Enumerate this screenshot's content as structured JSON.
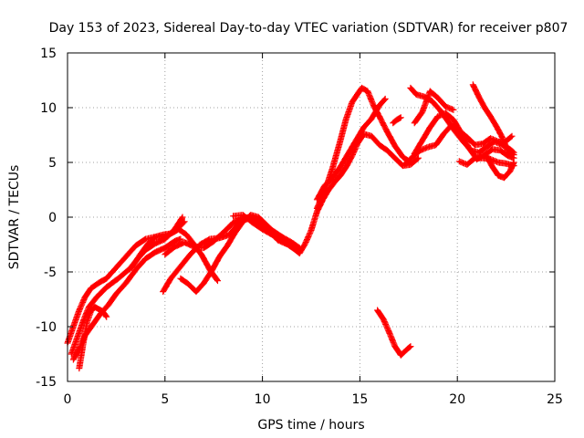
{
  "chart_data": {
    "type": "scatter",
    "title": "Day 153 of 2023, Sidereal Day-to-day VTEC variation (SDTVAR) for receiver p807",
    "xlabel": "GPS time / hours",
    "ylabel": "SDTVAR / TECUs",
    "xlim": [
      0,
      25
    ],
    "ylim": [
      -15,
      15
    ],
    "xticks": [
      0,
      5,
      10,
      15,
      20,
      25
    ],
    "yticks": [
      -15,
      -10,
      -5,
      0,
      5,
      10,
      15
    ],
    "xtick_labels": [
      "0",
      "5",
      "10",
      "15",
      "20",
      "25"
    ],
    "ytick_labels": [
      "-15",
      "-10",
      "-5",
      "0",
      "5",
      "10",
      "15"
    ],
    "grid": true,
    "marker": "+",
    "color": "#ff0000",
    "series": [
      {
        "name": "track-1",
        "points": [
          [
            0.0,
            -11.5
          ],
          [
            0.3,
            -10.0
          ],
          [
            0.6,
            -8.5
          ],
          [
            0.9,
            -7.3
          ],
          [
            1.2,
            -6.5
          ],
          [
            1.6,
            -6.0
          ],
          [
            2.0,
            -5.6
          ],
          [
            2.5,
            -4.6
          ],
          [
            3.0,
            -3.6
          ],
          [
            3.5,
            -2.6
          ],
          [
            4.0,
            -2.0
          ],
          [
            4.5,
            -1.8
          ],
          [
            5.0,
            -1.8
          ],
          [
            5.5,
            -1.3
          ],
          [
            6.0,
            -0.4
          ]
        ]
      },
      {
        "name": "track-2",
        "points": [
          [
            0.2,
            -12.5
          ],
          [
            0.5,
            -11.0
          ],
          [
            0.8,
            -9.5
          ],
          [
            1.1,
            -8.2
          ],
          [
            1.5,
            -7.3
          ],
          [
            2.0,
            -6.4
          ],
          [
            2.6,
            -5.6
          ],
          [
            3.2,
            -4.7
          ],
          [
            3.6,
            -3.8
          ],
          [
            4.0,
            -3.0
          ],
          [
            4.5,
            -2.4
          ],
          [
            5.0,
            -2.0
          ],
          [
            5.5,
            -1.1
          ],
          [
            5.9,
            0.0
          ]
        ]
      },
      {
        "name": "track-3",
        "points": [
          [
            0.6,
            -13.8
          ],
          [
            0.8,
            -11.6
          ],
          [
            1.0,
            -9.6
          ],
          [
            1.2,
            -8.6
          ],
          [
            1.4,
            -8.2
          ],
          [
            1.8,
            -8.6
          ],
          [
            2.0,
            -9.1
          ]
        ]
      },
      {
        "name": "track-4",
        "points": [
          [
            0.3,
            -13.0
          ],
          [
            0.6,
            -12.0
          ],
          [
            0.9,
            -10.8
          ],
          [
            1.3,
            -9.8
          ],
          [
            1.7,
            -8.8
          ],
          [
            2.1,
            -8.0
          ],
          [
            2.5,
            -7.0
          ],
          [
            3.0,
            -6.0
          ],
          [
            3.5,
            -4.8
          ],
          [
            4.0,
            -3.8
          ],
          [
            4.5,
            -3.2
          ],
          [
            5.0,
            -2.8
          ],
          [
            5.5,
            -2.2
          ],
          [
            5.8,
            -2.0
          ]
        ]
      },
      {
        "name": "track-5",
        "points": [
          [
            3.3,
            -4.6
          ],
          [
            3.7,
            -3.5
          ],
          [
            4.1,
            -2.5
          ],
          [
            4.5,
            -1.8
          ],
          [
            4.9,
            -1.6
          ],
          [
            5.3,
            -1.5
          ],
          [
            5.7,
            -1.1
          ],
          [
            6.1,
            -1.6
          ],
          [
            6.5,
            -2.5
          ],
          [
            6.9,
            -3.5
          ],
          [
            7.3,
            -4.8
          ],
          [
            7.7,
            -5.8
          ]
        ]
      },
      {
        "name": "track-6",
        "points": [
          [
            4.9,
            -6.8
          ],
          [
            5.3,
            -5.6
          ],
          [
            5.8,
            -4.5
          ],
          [
            6.3,
            -3.4
          ],
          [
            6.8,
            -2.5
          ],
          [
            7.3,
            -2.0
          ],
          [
            7.8,
            -1.9
          ],
          [
            8.3,
            -1.6
          ],
          [
            8.8,
            -0.5
          ],
          [
            9.3,
            -0.1
          ],
          [
            9.8,
            -0.4
          ],
          [
            10.3,
            -1.2
          ],
          [
            10.8,
            -2.1
          ],
          [
            11.3,
            -2.5
          ],
          [
            11.8,
            -3.1
          ]
        ]
      },
      {
        "name": "track-7",
        "points": [
          [
            5.0,
            -3.4
          ],
          [
            5.5,
            -2.7
          ],
          [
            6.0,
            -2.3
          ],
          [
            6.5,
            -2.7
          ],
          [
            7.0,
            -2.8
          ],
          [
            7.5,
            -2.2
          ],
          [
            8.0,
            -1.4
          ],
          [
            8.5,
            -0.5
          ],
          [
            9.0,
            -0.1
          ],
          [
            9.5,
            0.0
          ],
          [
            10.0,
            -0.4
          ],
          [
            10.5,
            -1.2
          ],
          [
            11.0,
            -1.8
          ],
          [
            11.5,
            -2.3
          ],
          [
            11.9,
            -2.8
          ]
        ]
      },
      {
        "name": "track-8",
        "points": [
          [
            5.8,
            -5.6
          ],
          [
            6.2,
            -6.1
          ],
          [
            6.6,
            -6.8
          ],
          [
            7.0,
            -6.0
          ],
          [
            7.4,
            -4.9
          ],
          [
            7.8,
            -3.6
          ],
          [
            8.2,
            -2.6
          ],
          [
            8.6,
            -1.4
          ],
          [
            9.0,
            -0.4
          ],
          [
            9.4,
            0.2
          ],
          [
            9.8,
            0.0
          ],
          [
            10.2,
            -0.7
          ],
          [
            10.6,
            -1.5
          ],
          [
            11.0,
            -1.8
          ],
          [
            11.4,
            -2.5
          ],
          [
            11.8,
            -2.8
          ]
        ]
      },
      {
        "name": "track-9",
        "points": [
          [
            8.5,
            0.1
          ],
          [
            9.0,
            0.2
          ],
          [
            9.5,
            -0.5
          ],
          [
            10.0,
            -1.1
          ],
          [
            10.5,
            -1.6
          ],
          [
            11.0,
            -2.1
          ],
          [
            11.5,
            -2.7
          ],
          [
            11.9,
            -3.3
          ],
          [
            12.2,
            -2.4
          ],
          [
            12.5,
            -1.2
          ],
          [
            12.8,
            0.5
          ],
          [
            13.1,
            1.6
          ],
          [
            13.4,
            2.5
          ],
          [
            13.7,
            3.2
          ],
          [
            14.0,
            3.8
          ],
          [
            14.3,
            4.6
          ],
          [
            14.6,
            5.6
          ],
          [
            14.9,
            6.8
          ],
          [
            15.2,
            7.6
          ],
          [
            15.6,
            7.4
          ],
          [
            16.0,
            6.6
          ],
          [
            16.4,
            6.1
          ],
          [
            16.8,
            5.4
          ],
          [
            17.2,
            4.7
          ],
          [
            17.6,
            4.8
          ],
          [
            18.0,
            5.4
          ]
        ]
      },
      {
        "name": "track-10",
        "points": [
          [
            12.8,
            0.8
          ],
          [
            13.2,
            2.4
          ],
          [
            13.6,
            4.5
          ],
          [
            14.0,
            7.0
          ],
          [
            14.3,
            9.0
          ],
          [
            14.6,
            10.5
          ],
          [
            14.9,
            11.3
          ],
          [
            15.1,
            11.8
          ],
          [
            15.4,
            11.5
          ],
          [
            15.7,
            10.2
          ],
          [
            16.0,
            9.2
          ],
          [
            16.4,
            7.8
          ],
          [
            16.8,
            6.5
          ],
          [
            17.2,
            5.5
          ],
          [
            17.6,
            5.0
          ]
        ]
      },
      {
        "name": "track-11",
        "points": [
          [
            12.8,
            1.6
          ],
          [
            13.2,
            2.9
          ],
          [
            13.6,
            3.6
          ],
          [
            14.0,
            4.6
          ],
          [
            14.4,
            5.8
          ],
          [
            14.8,
            7.0
          ],
          [
            15.2,
            8.2
          ],
          [
            15.6,
            9.0
          ],
          [
            16.0,
            10.2
          ],
          [
            16.3,
            10.8
          ]
        ]
      },
      {
        "name": "track-12",
        "points": [
          [
            17.3,
            4.8
          ],
          [
            17.7,
            5.5
          ],
          [
            18.1,
            6.1
          ],
          [
            18.5,
            6.4
          ],
          [
            18.9,
            6.6
          ],
          [
            19.3,
            7.6
          ],
          [
            19.7,
            8.4
          ],
          [
            20.1,
            7.9
          ],
          [
            20.5,
            7.3
          ],
          [
            20.9,
            6.6
          ],
          [
            21.3,
            6.7
          ],
          [
            21.7,
            7.2
          ],
          [
            22.1,
            6.9
          ],
          [
            22.4,
            6.8
          ],
          [
            22.8,
            7.4
          ]
        ]
      },
      {
        "name": "track-13",
        "points": [
          [
            17.8,
            5.8
          ],
          [
            18.2,
            7.0
          ],
          [
            18.6,
            8.2
          ],
          [
            19.0,
            9.2
          ],
          [
            19.4,
            9.5
          ],
          [
            19.8,
            8.9
          ],
          [
            20.2,
            7.7
          ],
          [
            20.6,
            6.3
          ],
          [
            21.0,
            5.3
          ],
          [
            21.4,
            5.7
          ],
          [
            21.8,
            6.2
          ],
          [
            22.2,
            6.1
          ],
          [
            22.6,
            5.6
          ],
          [
            22.9,
            5.4
          ]
        ]
      },
      {
        "name": "track-14",
        "points": [
          [
            17.6,
            11.8
          ],
          [
            17.9,
            11.2
          ],
          [
            18.3,
            11.0
          ],
          [
            18.7,
            10.6
          ],
          [
            19.1,
            9.8
          ],
          [
            19.5,
            8.8
          ],
          [
            19.9,
            7.8
          ],
          [
            20.3,
            6.9
          ],
          [
            20.7,
            6.1
          ],
          [
            21.1,
            5.9
          ],
          [
            21.5,
            6.4
          ],
          [
            21.9,
            6.9
          ],
          [
            22.3,
            6.6
          ],
          [
            22.7,
            6.2
          ],
          [
            22.9,
            5.9
          ]
        ]
      },
      {
        "name": "track-15",
        "points": [
          [
            20.1,
            5.1
          ],
          [
            20.5,
            4.8
          ],
          [
            20.9,
            5.4
          ],
          [
            21.3,
            5.4
          ],
          [
            21.7,
            5.3
          ],
          [
            22.1,
            5.0
          ],
          [
            22.5,
            4.9
          ],
          [
            22.9,
            4.7
          ]
        ]
      },
      {
        "name": "track-16",
        "points": [
          [
            20.8,
            12.1
          ],
          [
            21.1,
            11.0
          ],
          [
            21.4,
            10.0
          ],
          [
            21.7,
            9.2
          ],
          [
            22.0,
            8.3
          ],
          [
            22.3,
            7.3
          ],
          [
            22.6,
            6.0
          ],
          [
            22.9,
            5.7
          ]
        ]
      },
      {
        "name": "track-17",
        "points": [
          [
            21.5,
            5.6
          ],
          [
            21.8,
            4.6
          ],
          [
            22.1,
            3.8
          ],
          [
            22.4,
            3.6
          ],
          [
            22.7,
            4.2
          ],
          [
            22.9,
            5.0
          ]
        ]
      },
      {
        "name": "track-18",
        "points": [
          [
            17.8,
            8.6
          ],
          [
            18.2,
            9.6
          ],
          [
            18.6,
            11.5
          ],
          [
            19.0,
            10.9
          ],
          [
            19.4,
            10.1
          ],
          [
            19.8,
            9.8
          ]
        ]
      },
      {
        "name": "track-19",
        "points": [
          [
            16.7,
            8.6
          ],
          [
            16.9,
            8.9
          ],
          [
            17.1,
            9.1
          ]
        ]
      },
      {
        "name": "track-20",
        "points": [
          [
            15.9,
            -8.5
          ],
          [
            16.2,
            -9.3
          ],
          [
            16.5,
            -10.5
          ],
          [
            16.8,
            -11.8
          ],
          [
            17.1,
            -12.6
          ],
          [
            17.4,
            -12.1
          ],
          [
            17.6,
            -11.8
          ]
        ]
      }
    ]
  }
}
